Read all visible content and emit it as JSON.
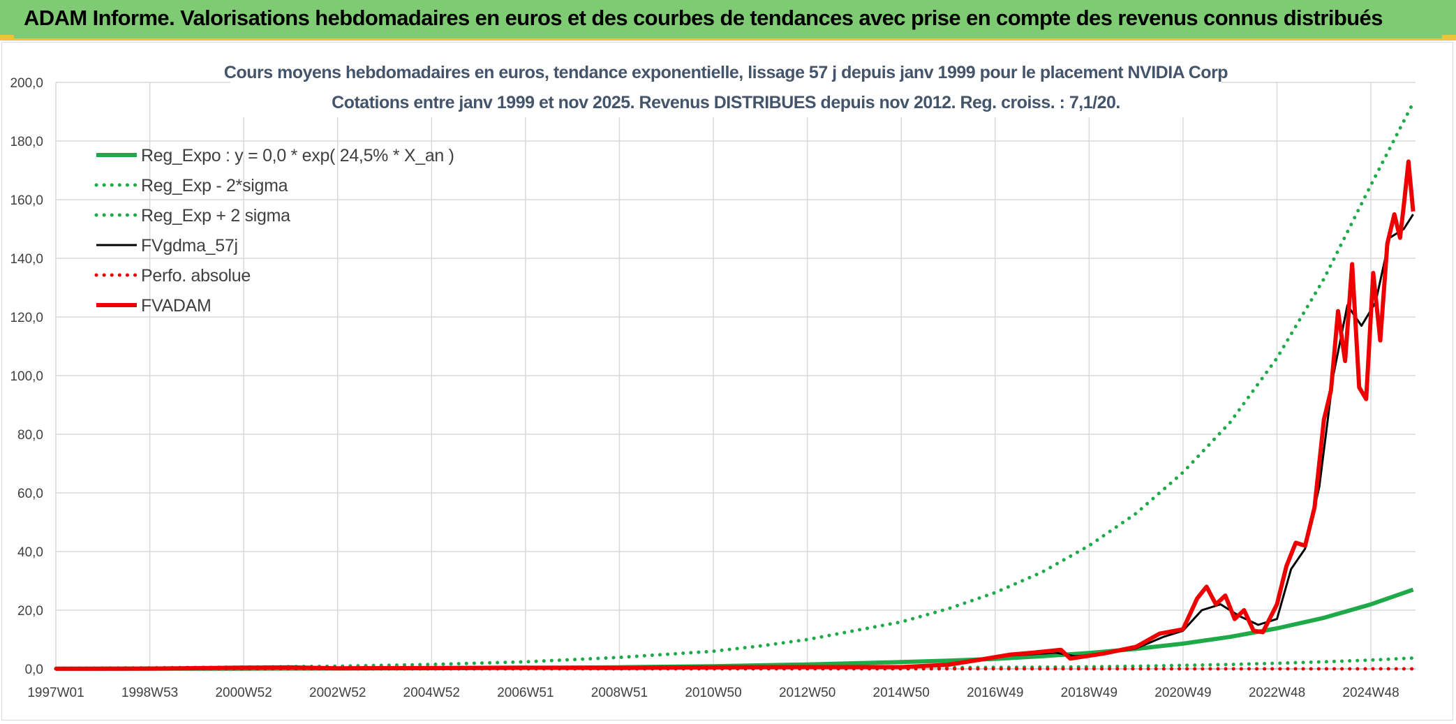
{
  "banner": {
    "title": "ADAM Informe. Valorisations hebdomadaires en euros et des courbes de tendances avec prise en compte des revenus connus distribués"
  },
  "colors": {
    "banner_bg": "#7fcb73",
    "accent_yellow": "#f1c232",
    "reg_green": "#1faa4a",
    "fvgdma_black": "#000000",
    "fvadam_red": "#ee0000",
    "grid": "#d9d9d9"
  },
  "chart_data": {
    "type": "line",
    "title_line1": "Cours moyens hebdomadaires en euros, tendance exponentielle, lissage 57 j depuis janv 1999 pour le placement NVIDIA Corp",
    "title_line2": "Cotations entre janv 1999 et nov 2025. Revenus DISTRIBUES depuis nov 2012. Reg. croiss. : 7,1/20.",
    "xlabel": "",
    "ylabel": "",
    "x_range": [
      1997.0,
      2025.95
    ],
    "ylim": [
      0,
      200
    ],
    "y_ticks": [
      "0,0",
      "20,0",
      "40,0",
      "60,0",
      "80,0",
      "100,0",
      "120,0",
      "140,0",
      "160,0",
      "180,0",
      "200,0"
    ],
    "x_ticks": [
      {
        "label": "1997W01",
        "x": 1997.0
      },
      {
        "label": "1998W53",
        "x": 1999.0
      },
      {
        "label": "2000W52",
        "x": 2001.0
      },
      {
        "label": "2002W52",
        "x": 2003.0
      },
      {
        "label": "2004W52",
        "x": 2005.0
      },
      {
        "label": "2006W51",
        "x": 2007.0
      },
      {
        "label": "2008W51",
        "x": 2009.0
      },
      {
        "label": "2010W50",
        "x": 2011.0
      },
      {
        "label": "2012W50",
        "x": 2013.0
      },
      {
        "label": "2014W50",
        "x": 2015.0
      },
      {
        "label": "2016W49",
        "x": 2017.0
      },
      {
        "label": "2018W49",
        "x": 2019.0
      },
      {
        "label": "2020W49",
        "x": 2021.0
      },
      {
        "label": "2022W48",
        "x": 2023.0
      },
      {
        "label": "2024W48",
        "x": 2025.0
      }
    ],
    "grid": true,
    "legend_position": "top-left",
    "series": [
      {
        "name": "Reg_Expo : y = 0,0 * exp( 24,5% *  X_an )",
        "style": "solid-thick",
        "color": "#1faa4a",
        "x": [
          1997,
          1999,
          2001,
          2003,
          2005,
          2007,
          2009,
          2011,
          2013,
          2015,
          2016,
          2017,
          2018,
          2019,
          2020,
          2021,
          2022,
          2023,
          2024,
          2025,
          2025.9
        ],
        "y": [
          0.03,
          0.05,
          0.08,
          0.13,
          0.21,
          0.34,
          0.55,
          0.9,
          1.5,
          2.3,
          2.8,
          3.4,
          4.3,
          5.4,
          6.8,
          8.6,
          10.9,
          13.8,
          17.4,
          22.0,
          27.0
        ]
      },
      {
        "name": "Reg_Exp - 2*sigma",
        "style": "dotted",
        "color": "#1faa4a",
        "x": [
          1997,
          1999,
          2001,
          2003,
          2005,
          2007,
          2009,
          2011,
          2013,
          2015,
          2017,
          2019,
          2020,
          2021,
          2022,
          2023,
          2024,
          2025,
          2025.9
        ],
        "y": [
          0.0,
          0.01,
          0.01,
          0.02,
          0.03,
          0.05,
          0.08,
          0.13,
          0.2,
          0.3,
          0.5,
          0.7,
          0.9,
          1.2,
          1.5,
          1.9,
          2.4,
          3.0,
          3.7
        ]
      },
      {
        "name": "Reg_Exp + 2 sigma",
        "style": "dotted",
        "color": "#1faa4a",
        "x": [
          1997,
          1999,
          2001,
          2003,
          2005,
          2007,
          2009,
          2011,
          2012,
          2013,
          2014,
          2015,
          2016,
          2017,
          2018,
          2019,
          2020,
          2021,
          2022,
          2023,
          2024,
          2025,
          2025.9
        ],
        "y": [
          0.2,
          0.35,
          0.6,
          0.9,
          1.5,
          2.4,
          3.9,
          6.0,
          7.8,
          10.0,
          13.0,
          16.0,
          20.5,
          26.0,
          33.0,
          42.0,
          53.0,
          67.0,
          84.0,
          106.0,
          133.0,
          165.0,
          193.0
        ]
      },
      {
        "name": "FVgdma_57j",
        "style": "solid",
        "color": "#000000",
        "x": [
          1997,
          1999,
          2001,
          2002,
          2003,
          2007,
          2009,
          2011,
          2013,
          2015,
          2016,
          2016.7,
          2017.3,
          2017.8,
          2018.3,
          2018.7,
          2019.3,
          2020,
          2020.6,
          2021,
          2021.4,
          2021.8,
          2022.2,
          2022.6,
          2023,
          2023.3,
          2023.6,
          2023.9,
          2024.2,
          2024.5,
          2024.8,
          2025.1,
          2025.4,
          2025.7,
          2025.9
        ],
        "y": [
          0.05,
          0.1,
          0.35,
          0.4,
          0.2,
          0.4,
          0.35,
          0.5,
          0.5,
          0.6,
          1.2,
          3.0,
          4.5,
          5.0,
          5.5,
          4.3,
          5.0,
          7.0,
          11.0,
          13.0,
          20.0,
          22.0,
          18.0,
          15.0,
          17.0,
          34.0,
          41.0,
          62.0,
          100.0,
          124.0,
          117.0,
          125.0,
          147.0,
          150.0,
          155.0
        ]
      },
      {
        "name": "Perfo. absolue",
        "style": "dotted",
        "color": "#ee0000",
        "x": [
          1997,
          2025.9
        ],
        "y": [
          0,
          0
        ]
      },
      {
        "name": "FVADAM",
        "style": "solid-thick",
        "color": "#ee0000",
        "x": [
          1997,
          1999,
          2001,
          2002,
          2003,
          2007,
          2009,
          2011,
          2013,
          2015,
          2016,
          2016.7,
          2017.3,
          2017.8,
          2018.4,
          2018.6,
          2019.3,
          2020,
          2020.5,
          2021,
          2021.3,
          2021.5,
          2021.7,
          2021.9,
          2022.1,
          2022.3,
          2022.5,
          2022.7,
          2023,
          2023.2,
          2023.4,
          2023.6,
          2023.8,
          2024,
          2024.15,
          2024.3,
          2024.45,
          2024.6,
          2024.75,
          2024.9,
          2025.05,
          2025.2,
          2025.35,
          2025.5,
          2025.62,
          2025.7,
          2025.8,
          2025.9
        ],
        "y": [
          0.05,
          0.1,
          0.4,
          0.5,
          0.2,
          0.4,
          0.3,
          0.5,
          0.6,
          0.6,
          1.4,
          3.2,
          4.8,
          5.5,
          6.5,
          3.5,
          5.2,
          7.5,
          12.0,
          13.5,
          24.0,
          28.0,
          22.0,
          25.0,
          17.0,
          20.0,
          13.0,
          12.5,
          22.0,
          35.0,
          43.0,
          42.0,
          55.0,
          85.0,
          95.0,
          122.0,
          105.0,
          138.0,
          96.0,
          92.0,
          135.0,
          112.0,
          145.0,
          155.0,
          147.0,
          158.0,
          173.0,
          156.0
        ]
      }
    ]
  }
}
